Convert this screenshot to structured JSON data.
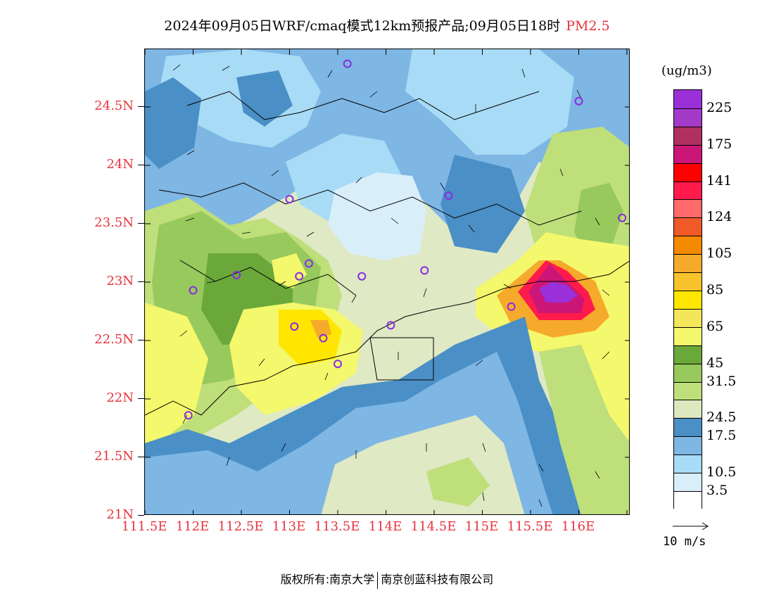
{
  "title": {
    "main": "2024年09月05日WRF/cmaq模式12km预报产品;09月05日18时",
    "pollutant": "PM2.5"
  },
  "axes": {
    "lat_labels": [
      "24.5N",
      "24N",
      "23.5N",
      "23N",
      "22.5N",
      "22N",
      "21.5N",
      "21N"
    ],
    "lon_labels": [
      "111.5E",
      "112E",
      "112.5E",
      "113E",
      "113.5E",
      "114E",
      "114.5E",
      "115E",
      "115.5E",
      "116E"
    ]
  },
  "colorbar": {
    "unit": "(ug/m3)",
    "labels": [
      "225",
      "175",
      "141",
      "124",
      "105",
      "85",
      "65",
      "45",
      "31.5",
      "24.5",
      "17.5",
      "10.5",
      "3.5"
    ],
    "colors_top_to_bottom": [
      "#9b30d8",
      "#a33ac8",
      "#b03060",
      "#cc1677",
      "#ff0000",
      "#ff1b4b",
      "#ff6a6a",
      "#f05a28",
      "#f58a00",
      "#f6aa2b",
      "#f8c22d",
      "#ffe600",
      "#f3e65a",
      "#f4f86c",
      "#6ba83a",
      "#97c95c",
      "#bedf7a",
      "#dce8bd",
      "#4a8fc6",
      "#7eb6e4",
      "#a8dbf5",
      "#d8effa",
      "#ffffff"
    ]
  },
  "wind_reference": {
    "label": "10 m/s"
  },
  "stations": [
    {
      "lon": 113.6,
      "lat": 24.87
    },
    {
      "lon": 116.0,
      "lat": 24.55
    },
    {
      "lon": 113.0,
      "lat": 23.71
    },
    {
      "lon": 114.65,
      "lat": 23.74
    },
    {
      "lon": 116.45,
      "lat": 23.55
    },
    {
      "lon": 113.2,
      "lat": 23.16
    },
    {
      "lon": 112.0,
      "lat": 22.93
    },
    {
      "lon": 112.45,
      "lat": 23.06
    },
    {
      "lon": 113.1,
      "lat": 23.05
    },
    {
      "lon": 113.75,
      "lat": 23.05
    },
    {
      "lon": 114.4,
      "lat": 23.1
    },
    {
      "lon": 115.3,
      "lat": 22.79
    },
    {
      "lon": 113.05,
      "lat": 22.62
    },
    {
      "lon": 113.35,
      "lat": 22.52
    },
    {
      "lon": 114.05,
      "lat": 22.63
    },
    {
      "lon": 113.5,
      "lat": 22.3
    },
    {
      "lon": 111.95,
      "lat": 21.86
    }
  ],
  "footer": {
    "left": "版权所有:南京大学",
    "right": "南京创蓝科技有限公司"
  }
}
